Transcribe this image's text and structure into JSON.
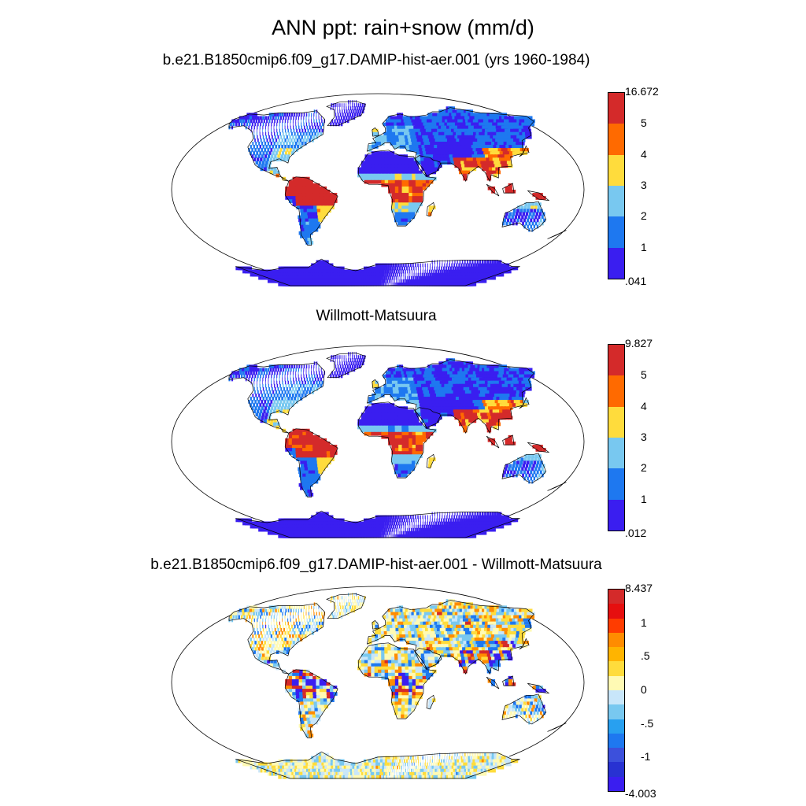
{
  "figure": {
    "title": "ANN ppt: rain+snow (mm/d)",
    "panels": [
      {
        "title": "b.e21.B1850cmip6.f09_g17.DAMIP-hist-aer.001 (yrs 1960-1984)",
        "colorbar": {
          "labels": [
            "16.672",
            "5",
            "4",
            "3",
            "2",
            "1",
            ".041"
          ],
          "colors": [
            "#d42a2a",
            "#ff6a00",
            "#ffdc3c",
            "#78c8f0",
            "#1e78f0",
            "#3a1ef0"
          ]
        }
      },
      {
        "title": "Willmott-Matsuura",
        "colorbar": {
          "labels": [
            "9.827",
            "5",
            "4",
            "3",
            "2",
            "1",
            ".012"
          ],
          "colors": [
            "#d42a2a",
            "#ff6a00",
            "#ffdc3c",
            "#78c8f0",
            "#1e78f0",
            "#3a1ef0"
          ]
        }
      },
      {
        "title": "b.e21.B1850cmip6.f09_g17.DAMIP-hist-aer.001 - Willmott-Matsuura",
        "colorbar": {
          "labels": [
            "8.437",
            "1",
            ".5",
            "0",
            "-.5",
            "-1",
            "-4.003"
          ],
          "colors": [
            "#d42a2a",
            "#e60f0f",
            "#ff3c00",
            "#ff8c00",
            "#ffb400",
            "#ffdc3c",
            "#fffab4",
            "#c8e6fa",
            "#78c8f0",
            "#28a0f0",
            "#1e78f0",
            "#3c50dc",
            "#2832d2",
            "#3a1ef0"
          ]
        }
      }
    ]
  },
  "colors": {
    "land_palette_abs": [
      "#3a1ef0",
      "#1e78f0",
      "#78c8f0",
      "#ffdc3c",
      "#ff6a00",
      "#d42a2a"
    ],
    "land_palette_diff": [
      "#3a1ef0",
      "#1e78f0",
      "#78c8f0",
      "#c8e6fa",
      "#fffab4",
      "#ffdc3c",
      "#ff8c00",
      "#d42a2a"
    ],
    "ocean": "#ffffff",
    "coastline": "#000000"
  }
}
